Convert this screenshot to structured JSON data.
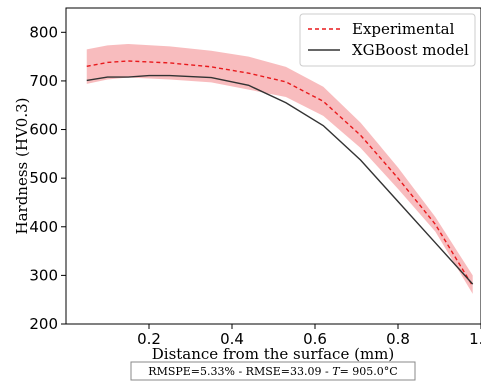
{
  "chart_data": {
    "type": "line",
    "xlabel": "Distance from the surface (mm)",
    "ylabel": "Hardness (HV0.3)",
    "xlim": [
      0.0,
      1.0
    ],
    "ylim": [
      200,
      850
    ],
    "xticks": [
      0.2,
      0.4,
      0.6,
      0.8,
      1.0
    ],
    "xtick_labels": [
      "0.2",
      "0.4",
      "0.6",
      "0.8",
      "1.0"
    ],
    "yticks": [
      200,
      300,
      400,
      500,
      600,
      700,
      800
    ],
    "ytick_labels": [
      "200",
      "300",
      "400",
      "500",
      "600",
      "700",
      "800"
    ],
    "legend_placement": "top-right",
    "series": [
      {
        "name": "Experimental",
        "style": "dashed",
        "color": "#e8191c",
        "x": [
          0.05,
          0.1,
          0.15,
          0.25,
          0.35,
          0.44,
          0.53,
          0.62,
          0.71,
          0.8,
          0.89,
          0.98
        ],
        "values": [
          730,
          738,
          741,
          737,
          729,
          716,
          698,
          658,
          588,
          500,
          405,
          278
        ]
      },
      {
        "name": "XGBoost model",
        "style": "solid",
        "color": "#333333",
        "x": [
          0.05,
          0.1,
          0.15,
          0.2,
          0.25,
          0.35,
          0.44,
          0.53,
          0.62,
          0.71,
          0.8,
          0.89,
          0.98
        ],
        "values": [
          701,
          708,
          708,
          711,
          711,
          707,
          691,
          655,
          608,
          537,
          452,
          367,
          282
        ]
      }
    ],
    "band": {
      "color": "#f5a6a8",
      "x": [
        0.05,
        0.1,
        0.15,
        0.25,
        0.35,
        0.44,
        0.53,
        0.62,
        0.71,
        0.8,
        0.89,
        0.98
      ],
      "upper": [
        765,
        773,
        776,
        771,
        762,
        750,
        729,
        688,
        614,
        522,
        420,
        300
      ],
      "lower": [
        694,
        703,
        707,
        703,
        697,
        682,
        667,
        628,
        562,
        478,
        390,
        262
      ]
    },
    "annotation": "RMSPE=5.33% - RMSE=33.09 - ",
    "annotation_t_symbol": "T",
    "annotation_t_value": "= 905.0°C"
  }
}
